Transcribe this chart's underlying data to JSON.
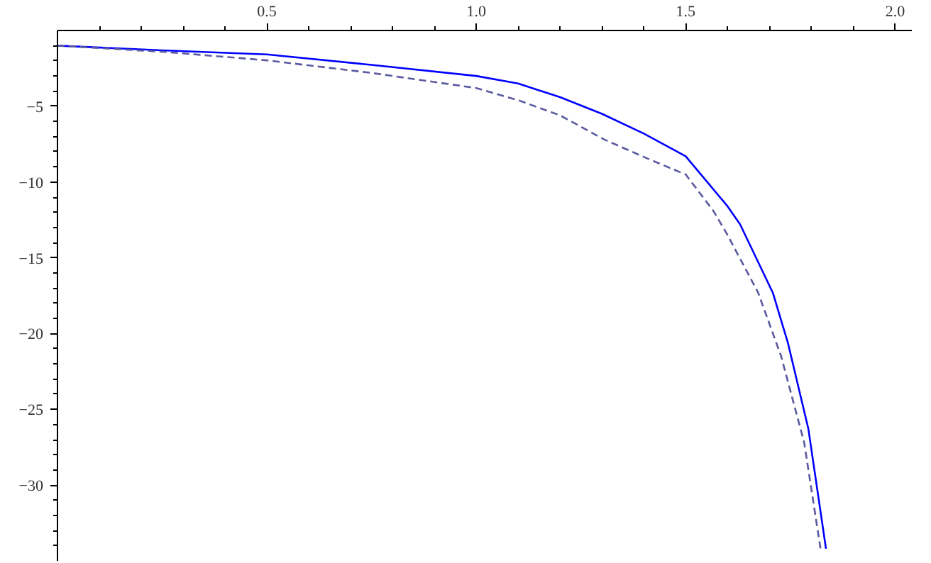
{
  "chart_data": {
    "type": "line",
    "xlim": [
      0,
      2.04
    ],
    "ylim": [
      -35,
      0
    ],
    "xticks": [
      {
        "value": 0.1,
        "label": null
      },
      {
        "value": 0.2,
        "label": null
      },
      {
        "value": 0.3,
        "label": null
      },
      {
        "value": 0.4,
        "label": null
      },
      0.5,
      {
        "value": 0.6,
        "label": null
      },
      {
        "value": 0.7,
        "label": null
      },
      {
        "value": 0.8,
        "label": null
      },
      {
        "value": 0.9,
        "label": null
      },
      {
        "value": 1,
        "label": "1.0"
      },
      {
        "value": 1.1,
        "label": null
      },
      {
        "value": 1.2,
        "label": null
      },
      {
        "value": 1.3,
        "label": null
      },
      {
        "value": 1.4,
        "label": null
      },
      1.5,
      {
        "value": 1.6,
        "label": null
      },
      {
        "value": 1.7,
        "label": null
      },
      {
        "value": 1.8,
        "label": null
      },
      {
        "value": 1.9,
        "label": null
      },
      {
        "value": 2,
        "label": "2.0"
      }
    ],
    "yticks": [
      {
        "value": -1,
        "label": null
      },
      {
        "value": -2,
        "label": null
      },
      {
        "value": -3,
        "label": null
      },
      {
        "value": -4,
        "label": null
      },
      {
        "value": -5,
        "label": "−5"
      },
      {
        "value": -6,
        "label": null
      },
      {
        "value": -7,
        "label": null
      },
      {
        "value": -8,
        "label": null
      },
      {
        "value": -9,
        "label": null
      },
      {
        "value": -10,
        "label": "−10"
      },
      {
        "value": -11,
        "label": null
      },
      {
        "value": -12,
        "label": null
      },
      {
        "value": -13,
        "label": null
      },
      {
        "value": -14,
        "label": null
      },
      {
        "value": -15,
        "label": "−15"
      },
      {
        "value": -16,
        "label": null
      },
      {
        "value": -17,
        "label": null
      },
      {
        "value": -18,
        "label": null
      },
      {
        "value": -19,
        "label": null
      },
      {
        "value": -20,
        "label": "−20"
      },
      {
        "value": -21,
        "label": null
      },
      {
        "value": -22,
        "label": null
      },
      {
        "value": -23,
        "label": null
      },
      {
        "value": -24,
        "label": null
      },
      {
        "value": -25,
        "label": "−25"
      },
      {
        "value": -26,
        "label": null
      },
      {
        "value": -27,
        "label": null
      },
      {
        "value": -28,
        "label": null
      },
      {
        "value": -29,
        "label": null
      },
      {
        "value": -30,
        "label": "−30"
      },
      {
        "value": -31,
        "label": null
      },
      {
        "value": -32,
        "label": null
      },
      {
        "value": -33,
        "label": null
      },
      {
        "value": -34,
        "label": null
      }
    ],
    "grid": false,
    "marker": "none",
    "series": [
      {
        "color": "#0000ff",
        "line_style": "solid",
        "x": [
          0,
          0.25,
          0.5,
          0.75,
          1.0,
          1.1,
          1.2,
          1.3,
          1.4,
          1.5,
          1.6,
          1.63,
          1.708,
          1.744,
          1.793,
          1.835
        ],
        "values": [
          -1.0,
          -1.31,
          -1.58,
          -2.27,
          -3.0,
          -3.5,
          -4.4,
          -5.5,
          -6.8,
          -8.3,
          -11.6,
          -12.8,
          -17.3,
          -20.6,
          -26.3,
          -34.2
        ]
      },
      {
        "color": "#5a5aa0",
        "line_style": "dashed",
        "x": [
          0,
          0.25,
          0.5,
          0.75,
          1.0,
          1.1,
          1.2,
          1.306,
          1.413,
          1.5,
          1.566,
          1.598,
          1.673,
          1.728,
          1.783,
          1.822
        ],
        "values": [
          -1.0,
          -1.4,
          -1.97,
          -2.8,
          -3.8,
          -4.6,
          -5.6,
          -7.2,
          -8.5,
          -9.5,
          -11.9,
          -13.4,
          -17.3,
          -21.5,
          -27.2,
          -34.2
        ]
      }
    ]
  }
}
